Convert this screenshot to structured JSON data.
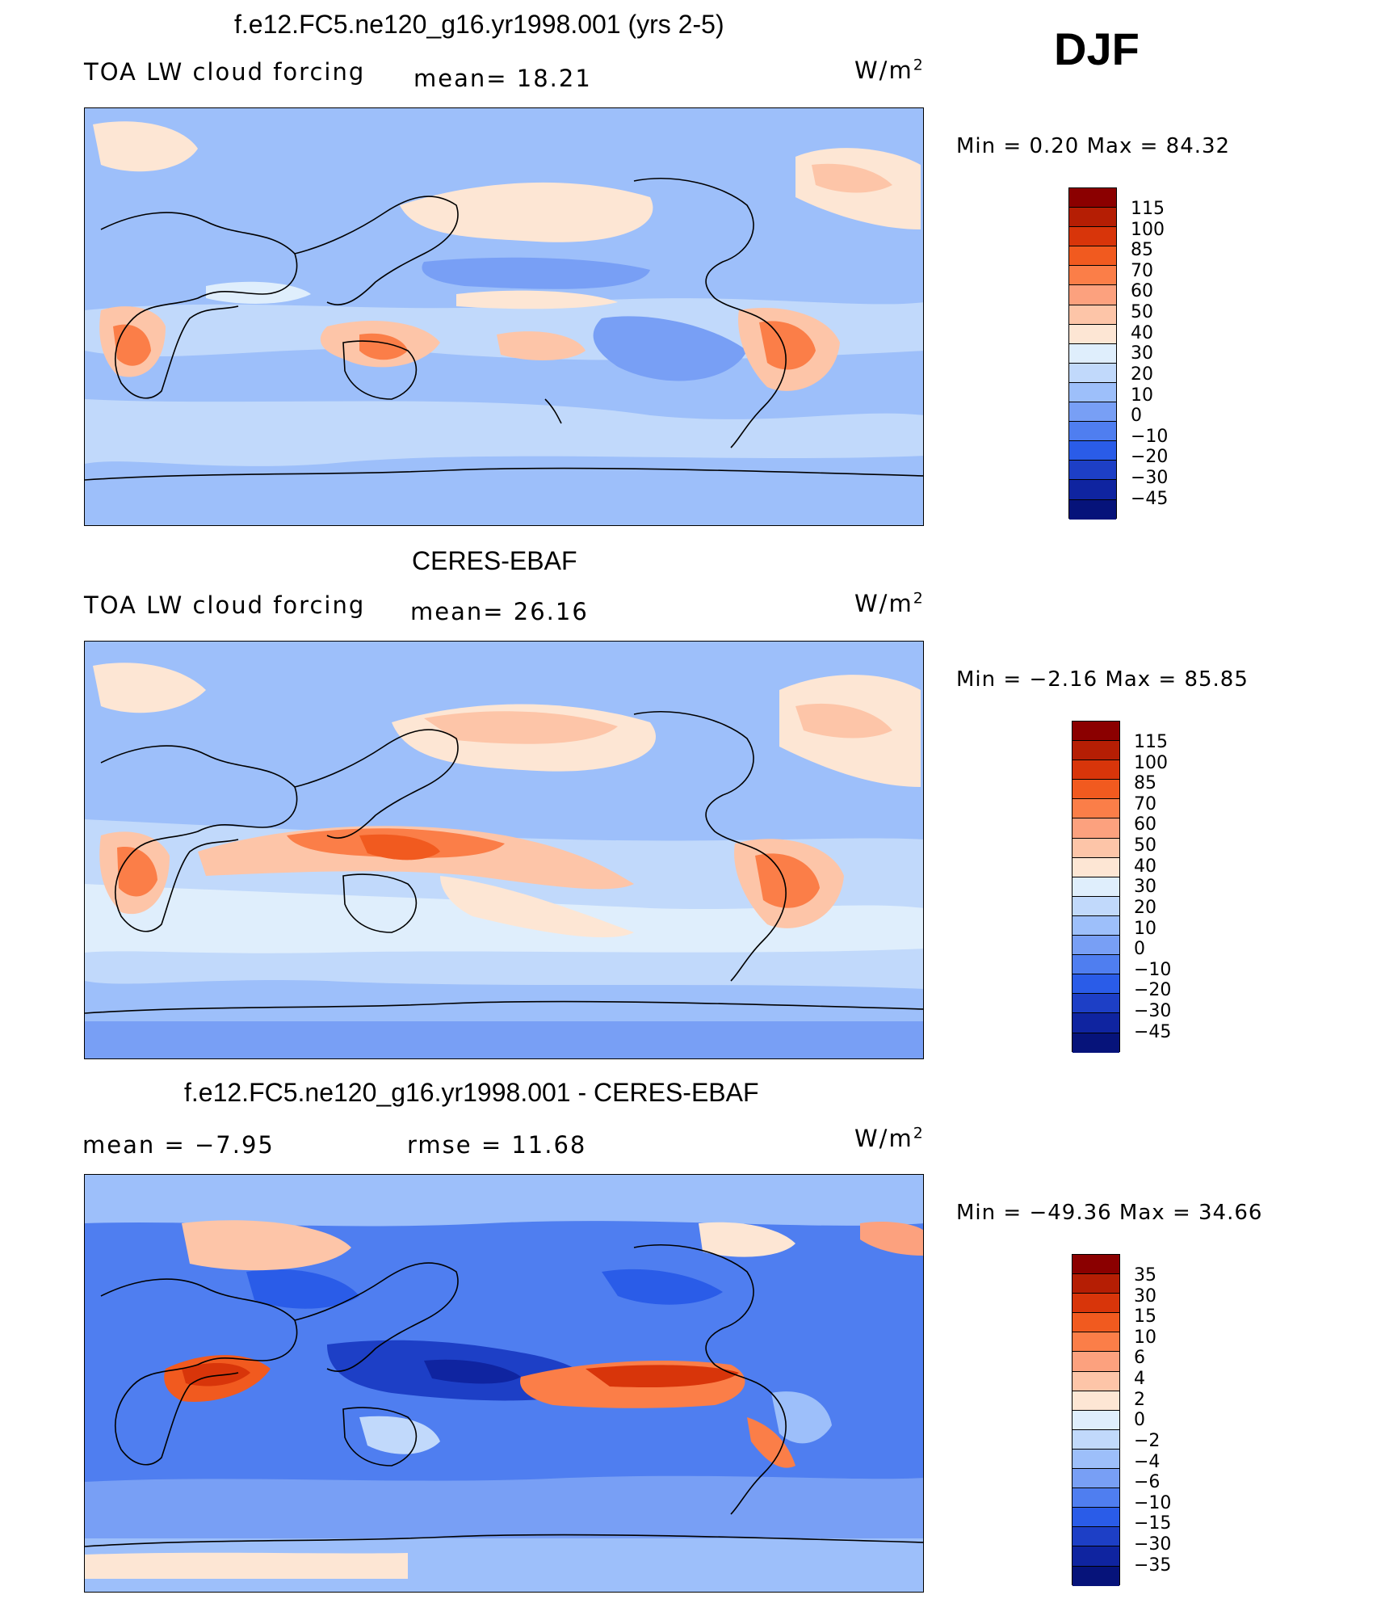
{
  "season": "DJF",
  "panels": [
    {
      "title": "f.e12.FC5.ne120_g16.yr1998.001 (yrs 2-5)",
      "left_label": "TOA LW cloud forcing",
      "stat1": "mean=   18.21",
      "units": "W/m",
      "units_sup": "2",
      "minmax": "Min =    0.20  Max =   84.32",
      "cbar_labels": [
        "115",
        "100",
        "85",
        "70",
        "60",
        "50",
        "40",
        "30",
        "20",
        "10",
        "0",
        "−10",
        "−20",
        "−30",
        "−45"
      ],
      "cbar_colors": [
        "#8b0000",
        "#b51e04",
        "#d8350a",
        "#f15a1f",
        "#fb7e48",
        "#fca17e",
        "#fdc5a8",
        "#fde6d4",
        "#dfeefc",
        "#c1d9fb",
        "#9dbffa",
        "#789ff5",
        "#4f7ef0",
        "#2a5ce8",
        "#1d3fc6",
        "#0f24a0",
        "#06137a"
      ]
    },
    {
      "title": "CERES-EBAF",
      "left_label": "TOA LW cloud forcing",
      "stat1": "mean=   26.16",
      "units": "W/m",
      "units_sup": "2",
      "minmax": "Min =   −2.16  Max =   85.85",
      "cbar_labels": [
        "115",
        "100",
        "85",
        "70",
        "60",
        "50",
        "40",
        "30",
        "20",
        "10",
        "0",
        "−10",
        "−20",
        "−30",
        "−45"
      ],
      "cbar_colors": [
        "#8b0000",
        "#b51e04",
        "#d8350a",
        "#f15a1f",
        "#fb7e48",
        "#fca17e",
        "#fdc5a8",
        "#fde6d4",
        "#dfeefc",
        "#c1d9fb",
        "#9dbffa",
        "#789ff5",
        "#4f7ef0",
        "#2a5ce8",
        "#1d3fc6",
        "#0f24a0",
        "#06137a"
      ]
    },
    {
      "title": "f.e12.FC5.ne120_g16.yr1998.001 - CERES-EBAF",
      "left_label": "mean =   −7.95",
      "stat1": "rmse =   11.68",
      "units": "W/m",
      "units_sup": "2",
      "minmax": "Min = −49.36  Max =   34.66",
      "cbar_labels": [
        "35",
        "30",
        "15",
        "10",
        "6",
        "4",
        "2",
        "0",
        "−2",
        "−4",
        "−6",
        "−10",
        "−15",
        "−30",
        "−35"
      ],
      "cbar_colors": [
        "#8b0000",
        "#b51e04",
        "#d8350a",
        "#f15a1f",
        "#fb7e48",
        "#fca17e",
        "#fdc5a8",
        "#fde6d4",
        "#dfeefc",
        "#c1d9fb",
        "#9dbffa",
        "#789ff5",
        "#4f7ef0",
        "#2a5ce8",
        "#1d3fc6",
        "#0f24a0",
        "#06137a"
      ]
    }
  ]
}
